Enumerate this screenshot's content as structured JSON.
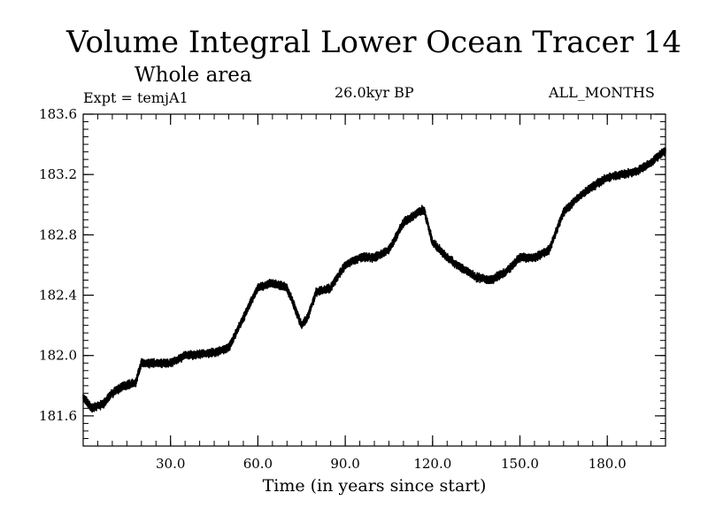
{
  "chart_data": {
    "type": "line",
    "title": "Volume Integral Lower Ocean Tracer 14",
    "subtitle": "Whole area",
    "experiment": "Expt = temjA1",
    "period": "26.0kyr BP",
    "months": "ALL_MONTHS",
    "xlabel": "Time (in years since start)",
    "ylabel": "",
    "xlim": [
      0,
      200
    ],
    "ylim": [
      181.4,
      183.6
    ],
    "x_ticks": [
      30,
      60,
      90,
      120,
      150,
      180
    ],
    "x_tick_labels": [
      "30.0",
      "60.0",
      "90.0",
      "120.0",
      "150.0",
      "180.0"
    ],
    "y_ticks": [
      181.6,
      182.0,
      182.4,
      182.8,
      183.2,
      183.6
    ],
    "y_tick_labels": [
      "181.6",
      "182.0",
      "182.4",
      "182.8",
      "183.2",
      "183.6"
    ],
    "noise_amplitude": 0.025,
    "series": [
      {
        "name": "Lower Ocean Tracer 14",
        "color": "#000000",
        "x": [
          0,
          3,
          7,
          10,
          14,
          18,
          20,
          25,
          30,
          35,
          40,
          45,
          50,
          55,
          60,
          65,
          70,
          73,
          75,
          77,
          80,
          85,
          90,
          95,
          100,
          105,
          110,
          115,
          117,
          120,
          125,
          130,
          135,
          140,
          145,
          150,
          155,
          160,
          165,
          170,
          175,
          180,
          185,
          190,
          195,
          200
        ],
        "y": [
          181.72,
          181.65,
          181.68,
          181.75,
          181.8,
          181.82,
          181.95,
          181.95,
          181.95,
          182.0,
          182.01,
          182.02,
          182.05,
          182.25,
          182.45,
          182.48,
          182.45,
          182.3,
          182.2,
          182.25,
          182.42,
          182.45,
          182.6,
          182.65,
          182.65,
          182.7,
          182.88,
          182.95,
          182.97,
          182.75,
          182.65,
          182.58,
          182.52,
          182.5,
          182.55,
          182.65,
          182.65,
          182.7,
          182.95,
          183.05,
          183.12,
          183.18,
          183.2,
          183.22,
          183.28,
          183.36
        ]
      }
    ]
  }
}
